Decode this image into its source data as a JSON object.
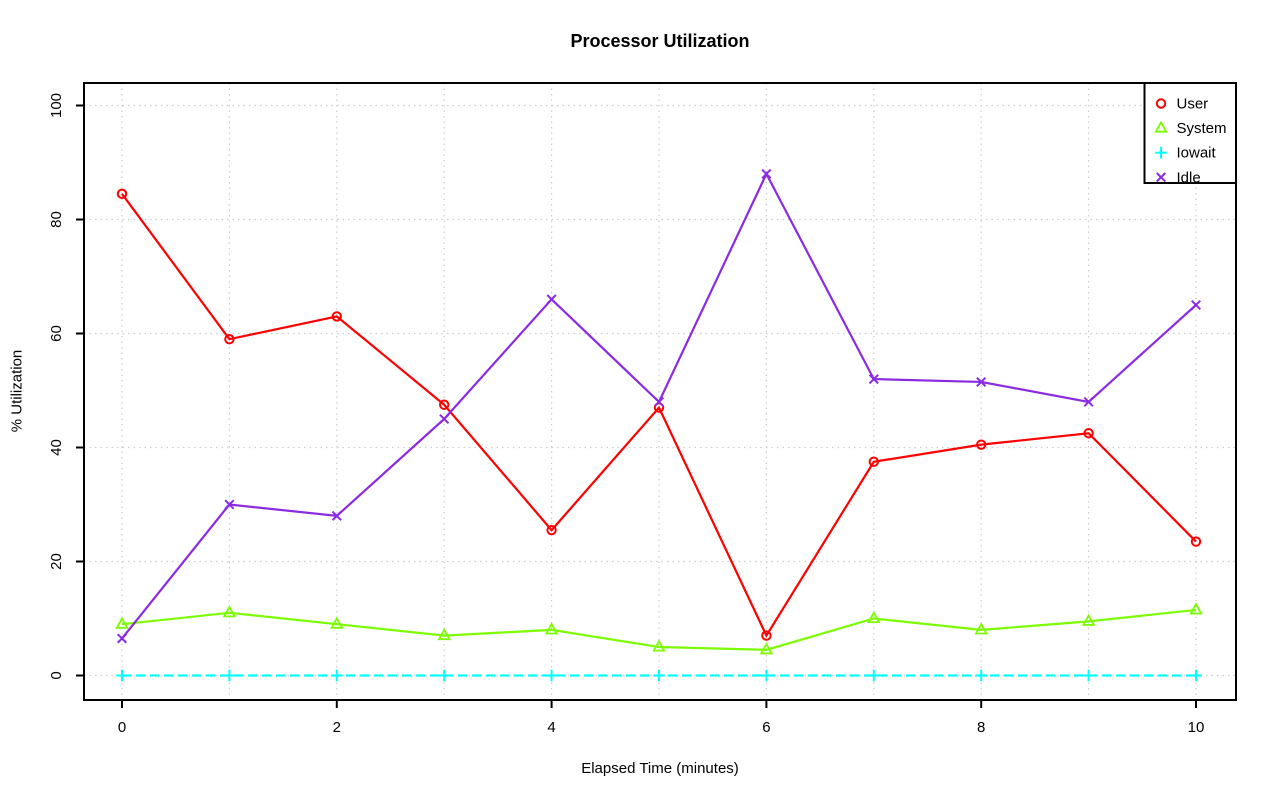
{
  "colors": {
    "background": "#FFFFFF",
    "grid": "#CCCCCC",
    "axis": "#000000",
    "legend_border": "#000000"
  },
  "chart_data": {
    "type": "line",
    "title": "Processor Utilization",
    "xlabel": "Elapsed Time (minutes)",
    "ylabel": "% Utilization",
    "x": [
      0,
      1,
      2,
      3,
      4,
      5,
      6,
      7,
      8,
      9,
      10
    ],
    "xlim": [
      0,
      10
    ],
    "ylim": [
      0,
      100
    ],
    "x_ticks": [
      0,
      2,
      4,
      6,
      8,
      10
    ],
    "y_ticks": [
      0,
      20,
      40,
      60,
      80,
      100
    ],
    "x_gridlines": [
      0,
      1,
      2,
      3,
      4,
      5,
      6,
      7,
      8,
      9,
      10
    ],
    "y_gridlines": [
      0,
      20,
      40,
      60,
      80,
      100
    ],
    "grid": true,
    "legend_position": "topright",
    "series": [
      {
        "name": "User",
        "color": "#FF0000",
        "marker": "circle",
        "line": "solid",
        "values": [
          84.5,
          59,
          63,
          47.5,
          25.5,
          47,
          7,
          37.5,
          40.5,
          42.5,
          23.5
        ]
      },
      {
        "name": "System",
        "color": "#7CFC00",
        "marker": "triangle",
        "line": "solid",
        "values": [
          9,
          11,
          9,
          7,
          8,
          5,
          4.5,
          10,
          8,
          9.5,
          11.5
        ]
      },
      {
        "name": "Iowait",
        "color": "#00FFFF",
        "marker": "plus",
        "line": "dashed",
        "values": [
          0,
          0,
          0,
          0,
          0,
          0,
          0,
          0,
          0,
          0,
          0
        ]
      },
      {
        "name": "Idle",
        "color": "#8A2BE2",
        "marker": "x",
        "line": "solid",
        "values": [
          6.5,
          30,
          28,
          45,
          66,
          48,
          88,
          52,
          51.5,
          48,
          65
        ]
      }
    ]
  }
}
